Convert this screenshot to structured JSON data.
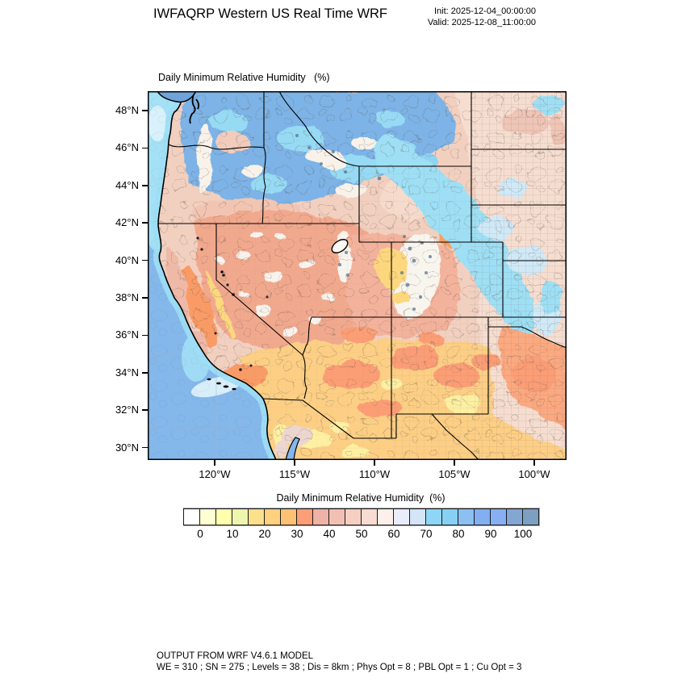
{
  "header": {
    "title": "IWFAQRP Western US Real Time WRF",
    "init": "Init: 2025-12-04_00:00:00",
    "valid": "Valid: 2025-12-08_11:00:00"
  },
  "map": {
    "subtitle": "Daily Minimum Relative Humidity   (%)",
    "lat_ticks": [
      "48°N",
      "46°N",
      "44°N",
      "42°N",
      "40°N",
      "38°N",
      "36°N",
      "34°N",
      "32°N",
      "30°N"
    ],
    "lon_ticks": [
      "120°W",
      "115°W",
      "110°W",
      "105°W",
      "100°W"
    ]
  },
  "colorbar": {
    "title": "Daily Minimum Relative Humidity  (%)",
    "tick_labels": [
      "0",
      "10",
      "20",
      "30",
      "40",
      "50",
      "60",
      "70",
      "80",
      "90",
      "100"
    ],
    "colors": [
      "#ffffff",
      "#ffffd4",
      "#ffffad",
      "#edf5af",
      "#fee08b",
      "#fdd17e",
      "#fdc173",
      "#fc9e78",
      "#efb2a6",
      "#f2c0b3",
      "#f4cfc2",
      "#f8dcd2",
      "#fdefe9",
      "#e9ecf9",
      "#d3e5f6",
      "#8ed6f6",
      "#88d0f3",
      "#8cc0f2",
      "#84aef2",
      "#87aff3",
      "#83a6d3",
      "#7d9fc2"
    ],
    "value_min": 0,
    "value_max": 100,
    "step_per_box": 5
  },
  "footer": {
    "line1": "OUTPUT FROM WRF V4.6.1 MODEL",
    "line2": "WE = 310 ; SN = 275 ; Levels = 38 ; Dis = 8km ; Phys Opt = 8 ; PBL Opt = 1 ; Cu Opt = 3"
  }
}
